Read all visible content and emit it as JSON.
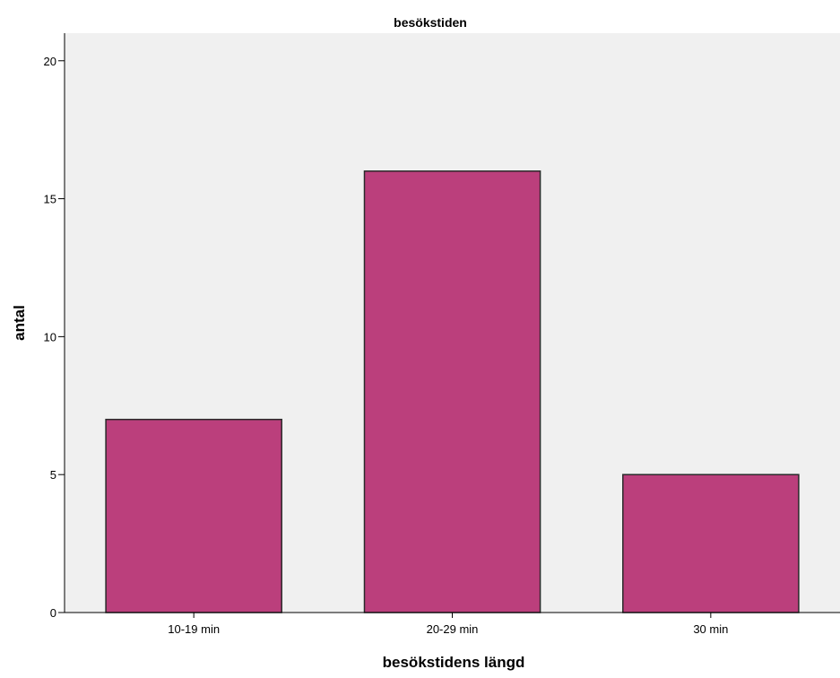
{
  "chart_data": {
    "type": "bar",
    "title": "besökstiden",
    "xlabel": "besökstidens längd",
    "ylabel": "antal",
    "categories": [
      "10-19 min",
      "20-29 min",
      "30 min"
    ],
    "values": [
      7,
      16,
      5
    ],
    "ylim": [
      0,
      21
    ],
    "yticks": [
      0,
      5,
      10,
      15,
      20
    ],
    "grid": false,
    "colors": {
      "bar_fill": "#bb3f7c",
      "bar_stroke": "#2a2a2a",
      "plot_background": "#f0f0f0",
      "axis": "#000000"
    }
  }
}
